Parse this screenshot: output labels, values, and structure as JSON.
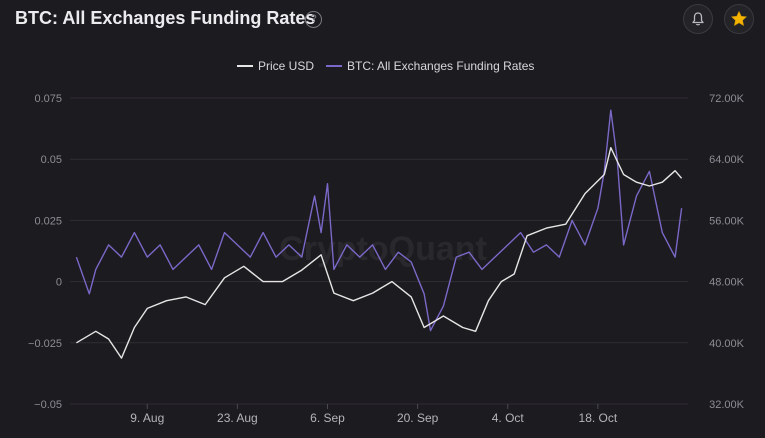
{
  "header": {
    "title": "BTC: All Exchanges Funding Rates",
    "help_glyph": "?",
    "bell_icon": "bell-icon",
    "star_icon": "star-icon",
    "star_color": "#f5b400"
  },
  "chart_data": {
    "type": "line",
    "watermark": "CryptoQuant",
    "legend": {
      "placement": "top-center",
      "items": [
        "Price USD",
        "BTC: All Exchanges Funding Rates"
      ]
    },
    "x_ticks": [
      "9. Aug",
      "23. Aug",
      "6. Sep",
      "20. Sep",
      "4. Oct",
      "18. Oct"
    ],
    "y_left": {
      "ticks": [
        "0.075",
        "0.05",
        "0.025",
        "0",
        "−0.025",
        "−0.05"
      ],
      "min": -0.05,
      "max": 0.075
    },
    "y_right": {
      "ticks": [
        "72.00K",
        "64.00K",
        "56.00K",
        "48.00K",
        "40.00K",
        "32.00K"
      ],
      "min": 32000,
      "max": 72000
    },
    "grid": true,
    "series": [
      {
        "name": "Price USD",
        "axis": "right",
        "color": "#e6e6e6",
        "x": [
          "2021-07-29",
          "2021-08-01",
          "2021-08-03",
          "2021-08-05",
          "2021-08-07",
          "2021-08-09",
          "2021-08-12",
          "2021-08-15",
          "2021-08-18",
          "2021-08-21",
          "2021-08-24",
          "2021-08-27",
          "2021-08-30",
          "2021-09-02",
          "2021-09-05",
          "2021-09-07",
          "2021-09-10",
          "2021-09-13",
          "2021-09-16",
          "2021-09-19",
          "2021-09-21",
          "2021-09-24",
          "2021-09-27",
          "2021-09-29",
          "2021-10-01",
          "2021-10-03",
          "2021-10-05",
          "2021-10-07",
          "2021-10-10",
          "2021-10-13",
          "2021-10-16",
          "2021-10-19",
          "2021-10-20",
          "2021-10-22",
          "2021-10-24",
          "2021-10-26",
          "2021-10-28",
          "2021-10-30",
          "2021-10-31"
        ],
        "values": [
          40000,
          41500,
          40500,
          38000,
          42000,
          44500,
          45500,
          46000,
          45000,
          48500,
          50000,
          48000,
          48000,
          49500,
          51500,
          46500,
          45500,
          46500,
          48000,
          46000,
          42000,
          43500,
          42000,
          41500,
          45500,
          48000,
          49000,
          54000,
          55000,
          55500,
          59500,
          62000,
          65500,
          62000,
          61000,
          60500,
          61000,
          62500,
          61500
        ]
      },
      {
        "name": "BTC: All Exchanges Funding Rates",
        "axis": "left",
        "color": "#7b68c8",
        "x": [
          "2021-07-29",
          "2021-07-31",
          "2021-08-01",
          "2021-08-03",
          "2021-08-05",
          "2021-08-07",
          "2021-08-09",
          "2021-08-11",
          "2021-08-13",
          "2021-08-15",
          "2021-08-17",
          "2021-08-19",
          "2021-08-21",
          "2021-08-23",
          "2021-08-25",
          "2021-08-27",
          "2021-08-29",
          "2021-08-31",
          "2021-09-02",
          "2021-09-04",
          "2021-09-05",
          "2021-09-06",
          "2021-09-07",
          "2021-09-09",
          "2021-09-11",
          "2021-09-13",
          "2021-09-15",
          "2021-09-17",
          "2021-09-19",
          "2021-09-21",
          "2021-09-22",
          "2021-09-24",
          "2021-09-26",
          "2021-09-28",
          "2021-09-30",
          "2021-10-02",
          "2021-10-04",
          "2021-10-06",
          "2021-10-08",
          "2021-10-10",
          "2021-10-12",
          "2021-10-14",
          "2021-10-16",
          "2021-10-18",
          "2021-10-19",
          "2021-10-20",
          "2021-10-21",
          "2021-10-22",
          "2021-10-24",
          "2021-10-26",
          "2021-10-28",
          "2021-10-30",
          "2021-10-31"
        ],
        "values": [
          0.01,
          -0.005,
          0.005,
          0.015,
          0.01,
          0.02,
          0.01,
          0.015,
          0.005,
          0.01,
          0.015,
          0.005,
          0.02,
          0.015,
          0.01,
          0.02,
          0.01,
          0.015,
          0.01,
          0.035,
          0.02,
          0.04,
          0.005,
          0.015,
          0.01,
          0.015,
          0.005,
          0.012,
          0.008,
          -0.005,
          -0.02,
          -0.01,
          0.01,
          0.012,
          0.005,
          0.01,
          0.015,
          0.02,
          0.012,
          0.015,
          0.01,
          0.025,
          0.015,
          0.03,
          0.045,
          0.07,
          0.05,
          0.015,
          0.035,
          0.045,
          0.02,
          0.01,
          0.03
        ]
      }
    ]
  }
}
